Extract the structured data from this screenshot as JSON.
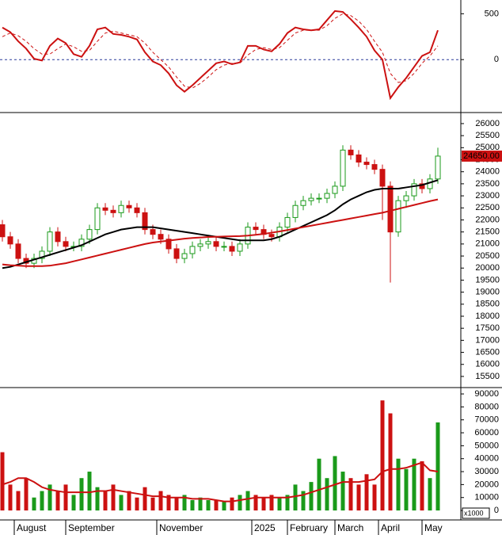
{
  "chart_data": [
    {
      "type": "line",
      "ylim": [
        -560,
        650
      ],
      "yticks": [
        0,
        500
      ],
      "reference_line": {
        "value": 0,
        "color": "#2a3b9c"
      },
      "series": [
        {
          "color": "#cc1111",
          "values": [
            350,
            300,
            200,
            120,
            10,
            -10,
            150,
            230,
            180,
            60,
            30,
            150,
            330,
            350,
            280,
            270,
            250,
            220,
            80,
            -20,
            -60,
            -150,
            -280,
            -350,
            -280,
            -200,
            -120,
            -40,
            -20,
            -50,
            -30,
            150,
            150,
            110,
            90,
            170,
            290,
            350,
            330,
            320,
            330,
            430,
            530,
            520,
            440,
            350,
            250,
            100,
            0,
            -420,
            -300,
            -200,
            -80,
            40,
            80,
            320
          ]
        },
        {
          "color": "#cc1111",
          "dashed": true,
          "values": [
            250,
            290,
            260,
            200,
            120,
            60,
            60,
            120,
            170,
            140,
            90,
            100,
            200,
            290,
            310,
            290,
            270,
            250,
            180,
            80,
            0,
            -80,
            -190,
            -290,
            -310,
            -260,
            -190,
            -110,
            -60,
            -40,
            -40,
            50,
            110,
            130,
            110,
            130,
            210,
            290,
            320,
            320,
            320,
            370,
            450,
            500,
            480,
            420,
            330,
            200,
            80,
            -150,
            -250,
            -230,
            -150,
            -40,
            40,
            150
          ]
        }
      ]
    },
    {
      "type": "candlestick",
      "ylim": [
        15070,
        26360
      ],
      "yticks": [
        15500,
        16000,
        16500,
        17000,
        17500,
        18000,
        18500,
        19000,
        19500,
        20000,
        20500,
        21000,
        21500,
        22000,
        22500,
        23000,
        23500,
        24000,
        24500,
        25000,
        25500,
        26000
      ],
      "up_color": "#1a9a1a",
      "down_color": "#cc1111",
      "open": [
        21800,
        21300,
        21000,
        20400,
        20200,
        20400,
        20700,
        21500,
        21100,
        20900,
        20900,
        21200,
        21600,
        22500,
        22400,
        22300,
        22600,
        22500,
        22300,
        21600,
        21400,
        21200,
        20800,
        20400,
        20600,
        20900,
        21000,
        21100,
        20900,
        20900,
        20700,
        21000,
        21700,
        21600,
        21400,
        21300,
        21700,
        22100,
        22600,
        22800,
        22900,
        22900,
        23100,
        23400,
        24900,
        24700,
        24400,
        24300,
        24100,
        23400,
        21500,
        22800,
        23000,
        23500,
        23300,
        23700
      ],
      "high": [
        22000,
        21500,
        21200,
        20600,
        20600,
        20900,
        21700,
        21700,
        21300,
        21100,
        21400,
        21800,
        22700,
        22700,
        22600,
        22800,
        22800,
        22700,
        22500,
        21800,
        21600,
        21400,
        21000,
        20800,
        21100,
        21200,
        21300,
        21300,
        21100,
        21100,
        21200,
        21900,
        21900,
        21800,
        21600,
        21900,
        22300,
        22800,
        23000,
        23100,
        23100,
        23300,
        23600,
        25100,
        25100,
        24900,
        24600,
        24500,
        24300,
        23600,
        23000,
        23200,
        23700,
        23700,
        23900,
        25000
      ],
      "low": [
        21100,
        20800,
        20200,
        20000,
        20000,
        20200,
        20500,
        20900,
        20700,
        20700,
        20700,
        21000,
        21400,
        22200,
        22100,
        22100,
        22300,
        22100,
        21400,
        21200,
        21000,
        20600,
        20200,
        20200,
        20400,
        20700,
        20800,
        20700,
        20700,
        20500,
        20500,
        20800,
        21400,
        21200,
        21100,
        21100,
        21500,
        21900,
        22400,
        22600,
        22700,
        22700,
        22900,
        23200,
        24500,
        24200,
        24100,
        23900,
        22000,
        19400,
        21300,
        22500,
        22800,
        23100,
        23100,
        23500
      ],
      "close": [
        21300,
        21000,
        20400,
        20200,
        20400,
        20700,
        21500,
        21100,
        20900,
        20900,
        21200,
        21600,
        22500,
        22400,
        22300,
        22600,
        22500,
        22300,
        21600,
        21400,
        21200,
        20800,
        20400,
        20600,
        20900,
        21000,
        21100,
        20900,
        20900,
        20700,
        21000,
        21700,
        21600,
        21400,
        21300,
        21700,
        22100,
        22600,
        22800,
        22900,
        22900,
        23100,
        23400,
        24900,
        24700,
        24400,
        24300,
        24100,
        23400,
        21500,
        22800,
        23000,
        23500,
        23300,
        23700,
        24650
      ],
      "last_price": {
        "value": 24650,
        "label": "24650.00",
        "color": "#cc1111"
      },
      "overlays": [
        {
          "color": "#000000",
          "values": [
            20000,
            20050,
            20150,
            20250,
            20350,
            20450,
            20550,
            20650,
            20750,
            20850,
            20950,
            21100,
            21250,
            21400,
            21500,
            21600,
            21650,
            21700,
            21700,
            21700,
            21650,
            21600,
            21550,
            21500,
            21450,
            21400,
            21350,
            21300,
            21250,
            21200,
            21150,
            21150,
            21150,
            21150,
            21200,
            21300,
            21450,
            21600,
            21750,
            21900,
            22050,
            22200,
            22400,
            22650,
            22850,
            23000,
            23150,
            23250,
            23300,
            23300,
            23300,
            23350,
            23400,
            23450,
            23550,
            23650
          ]
        },
        {
          "color": "#cc1111",
          "values": [
            20150,
            20120,
            20100,
            20080,
            20080,
            20080,
            20100,
            20150,
            20200,
            20280,
            20360,
            20440,
            20520,
            20600,
            20680,
            20760,
            20840,
            20920,
            21000,
            21060,
            21100,
            21140,
            21180,
            21220,
            21250,
            21270,
            21290,
            21300,
            21310,
            21320,
            21330,
            21350,
            21380,
            21420,
            21470,
            21520,
            21580,
            21640,
            21700,
            21760,
            21820,
            21880,
            21940,
            22000,
            22060,
            22120,
            22180,
            22240,
            22300,
            22380,
            22460,
            22540,
            22620,
            22700,
            22780,
            22850
          ]
        }
      ]
    },
    {
      "type": "bar",
      "ylim": [
        -6700,
        94300
      ],
      "yticks": [
        0,
        10000,
        20000,
        30000,
        40000,
        50000,
        60000,
        70000,
        80000,
        90000
      ],
      "unit_label": "x1000",
      "color": "#1a9a1a",
      "values": [
        45000,
        20000,
        15000,
        25000,
        10000,
        15000,
        20000,
        15000,
        20000,
        12000,
        25000,
        30000,
        18000,
        15000,
        20000,
        12000,
        15000,
        10000,
        18000,
        10000,
        15000,
        12000,
        10000,
        12000,
        8000,
        10000,
        8000,
        8000,
        7000,
        10000,
        12000,
        15000,
        12000,
        10000,
        12000,
        10000,
        12000,
        20000,
        15000,
        22000,
        40000,
        25000,
        42000,
        30000,
        25000,
        20000,
        28000,
        20000,
        85000,
        75000,
        40000,
        32000,
        40000,
        38000,
        25000,
        68000
      ],
      "overlays": [
        {
          "color": "#cc1111",
          "values": [
            20000,
            22000,
            25000,
            25000,
            22000,
            18000,
            16000,
            15000,
            14000,
            14000,
            14000,
            14000,
            15000,
            15000,
            16000,
            15000,
            14000,
            13000,
            12000,
            11000,
            11000,
            10000,
            10000,
            10000,
            9000,
            9000,
            9000,
            8000,
            7000,
            7000,
            8000,
            9000,
            10000,
            10000,
            10000,
            10000,
            10000,
            11000,
            12000,
            14000,
            16000,
            18000,
            20000,
            22000,
            22000,
            22000,
            23000,
            24000,
            30000,
            32000,
            32000,
            33000,
            35000,
            37000,
            31000,
            30000
          ]
        }
      ],
      "xticks": [
        {
          "value": 1.5,
          "label": "August"
        },
        {
          "value": 8,
          "label": "September"
        },
        {
          "value": 19.5,
          "label": "November"
        },
        {
          "value": 31.5,
          "label": "2025"
        },
        {
          "value": 36,
          "label": "February"
        },
        {
          "value": 42,
          "label": "March"
        },
        {
          "value": 47.5,
          "label": "April"
        },
        {
          "value": 53,
          "label": "May"
        }
      ]
    }
  ]
}
